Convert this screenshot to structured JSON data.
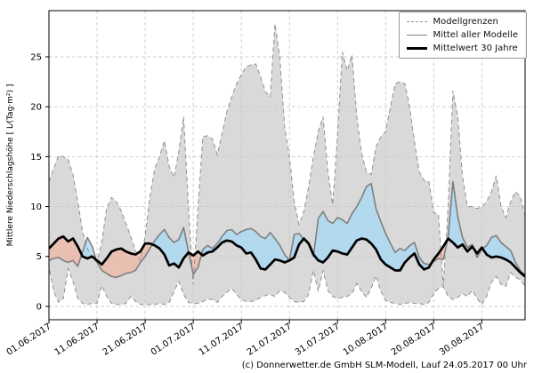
{
  "figure": {
    "footer": "(c) Donnerwetter.de GmbH SLM-Modell, Lauf 24.05.2017 00 Uhr",
    "y_axis_label": "Mittlere Niederschlagshöhe [ L⁄(Tag·m²) ]"
  },
  "legend": {
    "items": [
      {
        "label": "Modellgrenzen",
        "style": "dashed-gray"
      },
      {
        "label": "Mittel aller Modelle",
        "style": "solid-gray"
      },
      {
        "label": "Mittelwert 30 Jahre",
        "style": "solid-black-thick"
      }
    ]
  },
  "chart_data": {
    "type": "line",
    "title": "",
    "xlabel": "",
    "ylabel": "Mittlere Niederschlagshöhe [ L⁄(Tag·m²) ]",
    "x_unit": "days from 01.06.2017",
    "days": 100,
    "x_tick_positions_days": [
      0,
      10,
      20,
      30,
      40,
      50,
      60,
      70,
      80,
      90
    ],
    "x_tick_labels": [
      "01.06.2017",
      "11.06.2017",
      "21.06.2017",
      "01.07.2017",
      "11.07.2017",
      "21.07.2017",
      "31.07.2017",
      "10.08.2017",
      "20.08.2017",
      "30.08.2017"
    ],
    "y_ticks": [
      0,
      5,
      10,
      15,
      20,
      25
    ],
    "ylim": [
      -1.3,
      29.6
    ],
    "grid": true,
    "legend_position": "top-right",
    "colors": {
      "band_fill": "#d9d9d9",
      "band_edge": "#909090",
      "model_mean_line": "#7f7f7f",
      "mean30y_line": "#000000",
      "above_fill": "rgba(166,216,244,0.75)",
      "below_fill": "rgba(240,181,163,0.72)",
      "grid_line": "#c9c9c9",
      "spine": "#000000"
    },
    "series": [
      {
        "name": "Modellgrenzen (oberes Limit)",
        "role": "band_upper",
        "values": [
          12.5,
          13.8,
          15.1,
          15.0,
          14.7,
          13.2,
          10.5,
          7.5,
          5.8,
          4.8,
          4.4,
          6.5,
          9.8,
          10.9,
          10.5,
          9.6,
          8.3,
          7.0,
          5.6,
          4.6,
          7.0,
          11.0,
          13.8,
          15.0,
          16.6,
          14.0,
          12.9,
          15.5,
          19.0,
          10.0,
          2.2,
          10.0,
          17.0,
          17.1,
          16.8,
          15.2,
          17.3,
          19.5,
          21.0,
          22.3,
          23.2,
          24.0,
          24.2,
          24.3,
          23.0,
          21.5,
          21.0,
          28.3,
          25.0,
          18.0,
          15.0,
          10.5,
          8.2,
          9.5,
          12.0,
          15.0,
          17.5,
          19.0,
          13.5,
          10.2,
          17.0,
          25.5,
          23.6,
          25.2,
          19.0,
          15.3,
          13.5,
          13.2,
          16.0,
          17.0,
          17.5,
          20.0,
          22.3,
          22.5,
          22.3,
          20.0,
          16.5,
          13.5,
          12.6,
          12.5,
          9.4,
          9.2,
          2.0,
          10.0,
          21.6,
          19.0,
          13.0,
          10.0,
          10.0,
          9.8,
          10.0,
          10.5,
          11.5,
          13.1,
          10.0,
          8.9,
          10.5,
          11.5,
          11.0,
          9.1
        ]
      },
      {
        "name": "Modellgrenzen (unteres Limit)",
        "role": "band_lower",
        "values": [
          3.9,
          1.5,
          0.4,
          0.8,
          3.8,
          2.5,
          0.8,
          0.3,
          0.2,
          0.3,
          0.3,
          2.1,
          1.0,
          0.3,
          0.2,
          0.2,
          0.3,
          1.0,
          0.5,
          0.2,
          0.2,
          0.2,
          0.2,
          0.3,
          0.2,
          0.4,
          1.5,
          2.5,
          1.2,
          0.4,
          0.3,
          0.3,
          0.5,
          0.7,
          0.7,
          0.4,
          1.0,
          1.4,
          1.8,
          1.2,
          0.7,
          0.5,
          0.5,
          0.6,
          0.9,
          1.1,
          1.2,
          1.0,
          1.6,
          1.4,
          0.9,
          0.5,
          0.4,
          0.5,
          1.2,
          3.6,
          1.5,
          3.6,
          1.6,
          1.0,
          0.8,
          0.9,
          1.0,
          1.3,
          2.3,
          1.5,
          0.9,
          1.8,
          3.1,
          1.5,
          0.6,
          0.4,
          0.3,
          0.2,
          0.3,
          0.4,
          0.3,
          0.3,
          0.2,
          0.4,
          1.3,
          1.8,
          2.0,
          1.0,
          0.7,
          0.9,
          1.3,
          1.0,
          1.6,
          0.8,
          0.2,
          1.0,
          2.4,
          3.0,
          2.2,
          2.0,
          3.4,
          2.9,
          2.7,
          2.0
        ]
      },
      {
        "name": "Mittel aller Modelle",
        "role": "model_mean",
        "values": [
          4.6,
          4.8,
          4.9,
          4.6,
          4.4,
          4.6,
          4.0,
          5.5,
          6.9,
          6.0,
          4.4,
          3.6,
          3.3,
          3.0,
          2.9,
          3.1,
          3.3,
          3.4,
          3.6,
          4.4,
          5.0,
          5.8,
          6.6,
          7.2,
          7.7,
          6.9,
          6.4,
          6.7,
          7.9,
          5.5,
          3.2,
          3.9,
          5.7,
          6.1,
          5.8,
          6.3,
          7.0,
          7.6,
          7.7,
          7.2,
          7.5,
          7.7,
          7.8,
          7.5,
          7.0,
          6.8,
          7.4,
          6.8,
          6.1,
          5.2,
          4.6,
          7.2,
          7.3,
          6.7,
          6.2,
          5.0,
          8.8,
          9.5,
          8.6,
          8.3,
          8.9,
          8.7,
          8.3,
          9.3,
          10.0,
          10.9,
          12.0,
          12.3,
          9.8,
          8.5,
          7.3,
          6.3,
          5.4,
          5.8,
          5.6,
          6.1,
          6.4,
          4.9,
          4.3,
          4.2,
          4.5,
          4.8,
          4.7,
          6.9,
          12.5,
          9.0,
          6.9,
          5.9,
          6.2,
          4.9,
          5.7,
          6.1,
          6.9,
          7.1,
          6.4,
          6.0,
          5.6,
          4.4,
          3.6,
          3.1
        ]
      },
      {
        "name": "Mittelwert 30 Jahre",
        "role": "mean30y",
        "values": [
          5.8,
          6.3,
          6.8,
          7.0,
          6.5,
          6.8,
          6.0,
          5.0,
          4.8,
          5.0,
          4.6,
          4.2,
          4.8,
          5.5,
          5.7,
          5.8,
          5.5,
          5.3,
          5.2,
          5.5,
          6.3,
          6.3,
          6.1,
          5.8,
          5.2,
          4.1,
          4.3,
          3.9,
          4.8,
          5.4,
          5.1,
          5.5,
          5.1,
          5.4,
          5.5,
          5.9,
          6.4,
          6.6,
          6.5,
          6.1,
          5.9,
          5.3,
          5.4,
          4.7,
          3.8,
          3.7,
          4.2,
          4.7,
          4.6,
          4.4,
          4.6,
          4.9,
          6.2,
          6.8,
          6.3,
          5.2,
          4.6,
          4.4,
          4.9,
          5.6,
          5.5,
          5.3,
          5.2,
          5.9,
          6.6,
          6.8,
          6.7,
          6.3,
          5.7,
          4.7,
          4.2,
          3.9,
          3.6,
          3.6,
          4.4,
          4.9,
          5.3,
          4.2,
          3.7,
          3.9,
          4.7,
          5.3,
          6.0,
          6.8,
          6.4,
          5.9,
          6.2,
          5.5,
          6.0,
          5.3,
          5.9,
          5.2,
          4.9,
          5.0,
          4.9,
          4.7,
          4.4,
          3.9,
          3.4,
          3.0
        ]
      }
    ],
    "fill_between": {
      "description": "area between 'Mittel aller Modelle' and 'Mittelwert 30 Jahre': blue where model mean above 30y mean, salmon where below"
    }
  }
}
